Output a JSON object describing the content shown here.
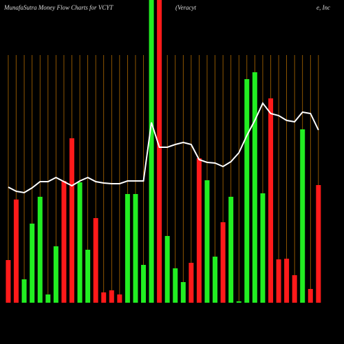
{
  "chart_data": {
    "type": "bar",
    "title_parts": [
      "MunafaSutra  Money Flow  Charts for VCYT",
      "(Veracyt",
      "e, Inc"
    ],
    "categories": [
      null,
      null,
      null,
      null,
      null,
      null,
      null,
      null,
      null,
      null,
      null,
      null,
      null,
      null,
      null,
      null,
      null,
      null,
      null,
      null,
      null,
      null,
      null,
      null,
      null,
      null,
      null,
      null,
      null,
      null,
      null,
      null,
      null,
      null,
      null,
      null,
      null,
      null,
      null,
      null
    ],
    "values": [
      62,
      150,
      34,
      115,
      154,
      12,
      82,
      177,
      239,
      175,
      77,
      123,
      15,
      18,
      12,
      158,
      158,
      55,
      440,
      440,
      97,
      50,
      30,
      58,
      210,
      178,
      67,
      117,
      154,
      2,
      325,
      335,
      159,
      297,
      63,
      64,
      40,
      252,
      20,
      171
    ],
    "colors": [
      "#ff1a1a",
      "#ff1a1a",
      "#22ee22",
      "#22ee22",
      "#22ee22",
      "#22ee22",
      "#22ee22",
      "#ff1a1a",
      "#ff1a1a",
      "#22ee22",
      "#22ee22",
      "#ff1a1a",
      "#ff1a1a",
      "#ff1a1a",
      "#ff1a1a",
      "#22ee22",
      "#22ee22",
      "#22ee22",
      "#22ee22",
      "#ff1a1a",
      "#22ee22",
      "#22ee22",
      "#22ee22",
      "#ff1a1a",
      "#ff1a1a",
      "#22ee22",
      "#22ee22",
      "#ff1a1a",
      "#22ee22",
      "#22ee22",
      "#22ee22",
      "#22ee22",
      "#22ee22",
      "#ff1a1a",
      "#ff1a1a",
      "#ff1a1a",
      "#ff1a1a",
      "#22ee22",
      "#ff1a1a",
      "#ff1a1a"
    ],
    "line": {
      "type": "line",
      "color": "#ffffff",
      "values": [
        168,
        162,
        160,
        167,
        176,
        176,
        182,
        176,
        170,
        177,
        182,
        176,
        174,
        173,
        173,
        177,
        177,
        177,
        262,
        226,
        226,
        230,
        233,
        230,
        208,
        204,
        203,
        198,
        205,
        218,
        243,
        265,
        290,
        275,
        272,
        265,
        263,
        277,
        275,
        251
      ]
    },
    "ylim": [
      0,
      440
    ],
    "grid": true,
    "grid_color": "#b06a00"
  }
}
